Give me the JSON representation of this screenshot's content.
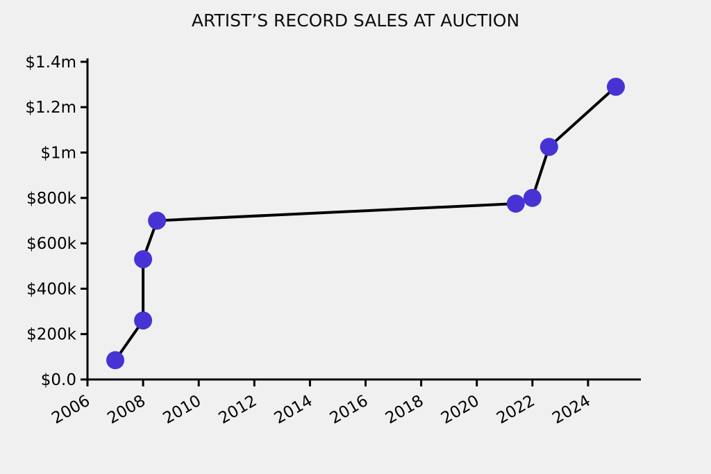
{
  "chart_data": {
    "type": "line",
    "title": "ARTIST’S RECORD SALES AT AUCTION",
    "xlabel": "",
    "ylabel": "",
    "points": [
      {
        "x": 2007.0,
        "y": 85000
      },
      {
        "x": 2008.0,
        "y": 260000
      },
      {
        "x": 2008.0,
        "y": 530000
      },
      {
        "x": 2008.5,
        "y": 700000
      },
      {
        "x": 2021.4,
        "y": 775000
      },
      {
        "x": 2022.0,
        "y": 800000
      },
      {
        "x": 2022.6,
        "y": 1025000
      },
      {
        "x": 2025.0,
        "y": 1290000
      }
    ],
    "xticks": [
      {
        "value": 2006,
        "label": "2006"
      },
      {
        "value": 2008,
        "label": "2008"
      },
      {
        "value": 2010,
        "label": "2010"
      },
      {
        "value": 2012,
        "label": "2012"
      },
      {
        "value": 2014,
        "label": "2014"
      },
      {
        "value": 2016,
        "label": "2016"
      },
      {
        "value": 2018,
        "label": "2018"
      },
      {
        "value": 2020,
        "label": "2020"
      },
      {
        "value": 2022,
        "label": "2022"
      },
      {
        "value": 2024,
        "label": "2024"
      }
    ],
    "yticks": [
      {
        "value": 0,
        "label": "$0.0"
      },
      {
        "value": 200000,
        "label": "$200k"
      },
      {
        "value": 400000,
        "label": "$400k"
      },
      {
        "value": 600000,
        "label": "$600k"
      },
      {
        "value": 800000,
        "label": "$800k"
      },
      {
        "value": 1000000,
        "label": "$1m"
      },
      {
        "value": 1200000,
        "label": "$1.2m"
      },
      {
        "value": 1400000,
        "label": "$1.4m"
      }
    ],
    "xlim": [
      2006,
      2025.9
    ],
    "ylim": [
      0,
      1415000
    ],
    "grid": false,
    "legend": null,
    "x_tick_rotation_deg": 30,
    "line_color": "#000000",
    "marker_color": "#4733D4",
    "marker_diameter_px": 26,
    "axis_color": "#000000",
    "background": "#f0f0f0"
  }
}
